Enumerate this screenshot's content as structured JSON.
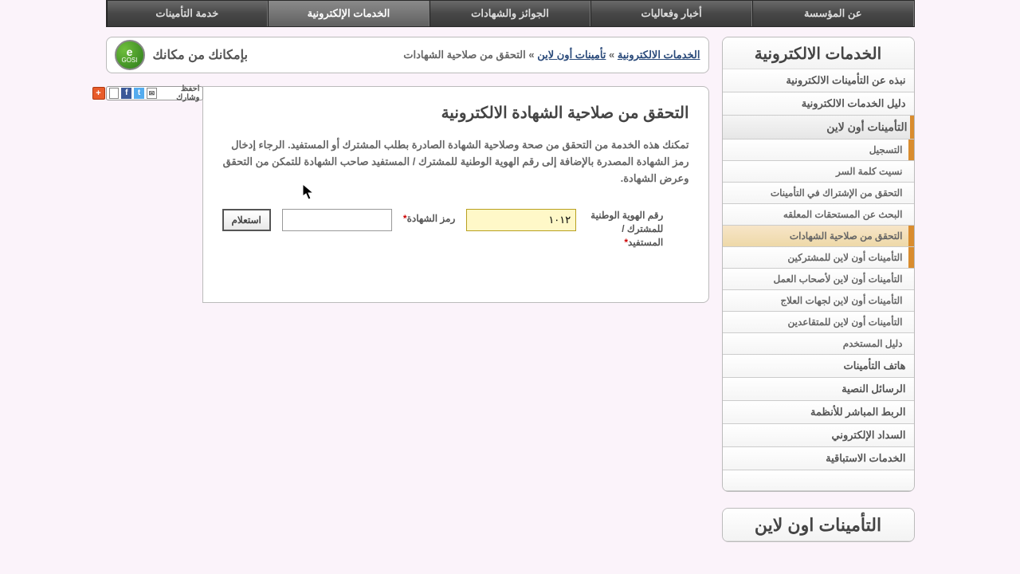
{
  "topnav": {
    "tabs": [
      {
        "label": "خدمة التأمينات"
      },
      {
        "label": "الخدمات الإلكترونية",
        "active": true
      },
      {
        "label": "الجوائز والشهادات"
      },
      {
        "label": "أخبار وفعاليات"
      },
      {
        "label": "عن المؤسسة"
      }
    ]
  },
  "sidebar": {
    "panel1_title": "الخدمات الالكترونية",
    "menu": [
      {
        "label": "نبذه عن التأمينات الالكترونية",
        "type": "item"
      },
      {
        "label": "دليل الخدمات الالكترونية",
        "type": "item"
      },
      {
        "label": "التأمينات أون لاين",
        "type": "subhead"
      },
      {
        "label": "التسجيل",
        "type": "small bullet"
      },
      {
        "label": "نسيت كلمة السر",
        "type": "small"
      },
      {
        "label": "التحقق من الإشتراك في التأمينات",
        "type": "small"
      },
      {
        "label": "البحث عن المستحقات المعلقه",
        "type": "small"
      },
      {
        "label": "التحقق من صلاحية الشهادات",
        "type": "small sel"
      },
      {
        "label": "التأمينات أون لاين للمشتركين",
        "type": "small bullet"
      },
      {
        "label": "التأمينات أون لاين لأصحاب العمل",
        "type": "small"
      },
      {
        "label": "التأمينات أون لاين لجهات العلاج",
        "type": "small"
      },
      {
        "label": "التأمينات أون لاين للمتقاعدين",
        "type": "small"
      },
      {
        "label": "دليل المستخدم",
        "type": "small"
      },
      {
        "label": "هاتف التأمينات",
        "type": "item"
      },
      {
        "label": "الرسائل النصية",
        "type": "item"
      },
      {
        "label": "الربط المباشر للأنظمة",
        "type": "item"
      },
      {
        "label": "السداد الإلكتروني",
        "type": "item"
      },
      {
        "label": "الخدمات الاستباقية",
        "type": "item"
      },
      {
        "label": "",
        "type": "item"
      }
    ],
    "panel2_title": "التأمينات اون لاين"
  },
  "header": {
    "logo_top": "e",
    "logo_bottom": "GOSI",
    "text": "بإمكانك من مكانك",
    "crumb_a": "الخدمات الالكترونية",
    "sep": " » ",
    "crumb_b": "تأمينات أون لاين",
    "crumb_c": "التحقق من صلاحية الشهادات"
  },
  "share": {
    "label": "احفظ وشارك"
  },
  "content": {
    "title": "التحقق من صلاحية الشهادة الالكترونية",
    "desc": "تمكنك هذه الخدمة من التحقق من صحة وصلاحية الشهادة الصادرة بطلب المشترك أو المستفيد. الرجاء إدخال رمز الشهادة المصدرة بالإضافة إلى رقم الهوية الوطنية للمشترك / المستفيد صاحب الشهادة للتمكن من التحقق وعرض الشهادة.",
    "label_id_1": "رقم الهوية الوطنية",
    "label_id_2": "للمشترك /",
    "label_id_3": "المستفيد",
    "label_code": "رمز الشهادة",
    "input_id_value": "١٠١٢",
    "btn": "استعلام"
  }
}
